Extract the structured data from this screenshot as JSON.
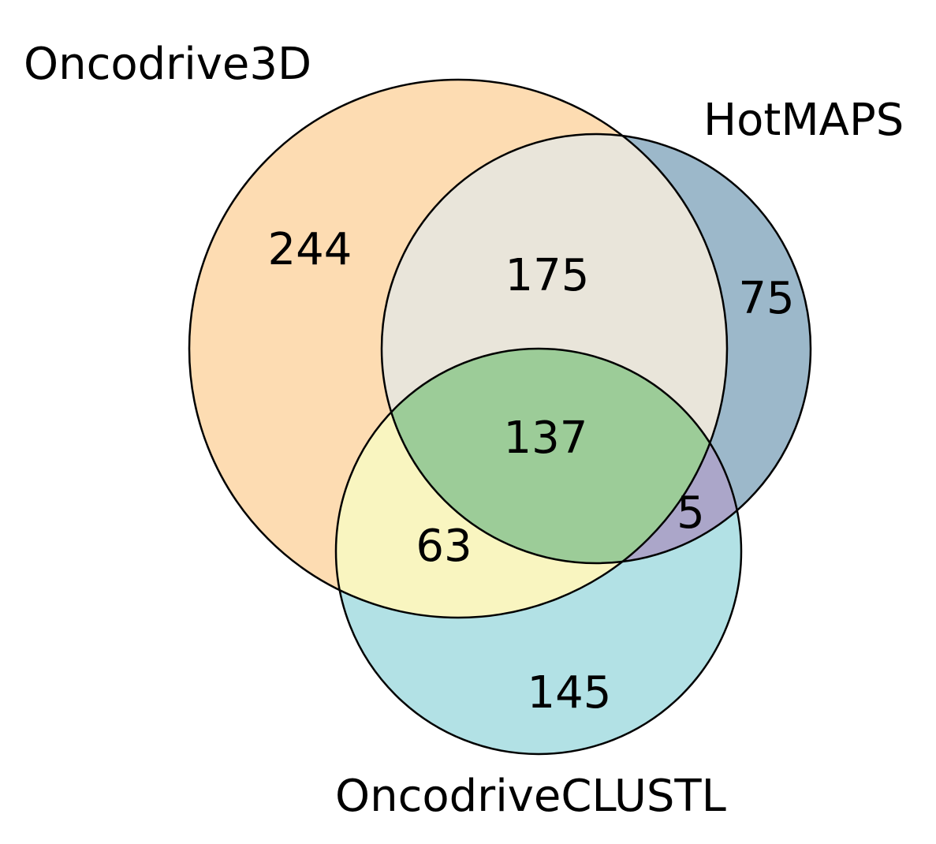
{
  "sets": [
    {
      "name": "Oncodrive3D"
    },
    {
      "name": "HotMAPS"
    },
    {
      "name": "OncodriveCLUSTL"
    }
  ],
  "regions": {
    "oncodrive3d_only": "244",
    "oncodrive3d_hotmaps": "175",
    "hotmaps_only": "75",
    "all_three": "137",
    "hotmaps_clustl": "5",
    "oncodrive3d_clustl": "63",
    "clustl_only": "145"
  },
  "colors": {
    "oncodrive3d_only": "#fddcb2",
    "oncodrive3d_hotmaps": "#e9e5da",
    "hotmaps_only": "#9cb8ca",
    "all_three": "#9ccc98",
    "hotmaps_clustl": "#aba6c9",
    "oncodrive3d_clustl": "#f9f5c0",
    "clustl_only": "#b2e1e5",
    "outline": "#000000"
  }
}
